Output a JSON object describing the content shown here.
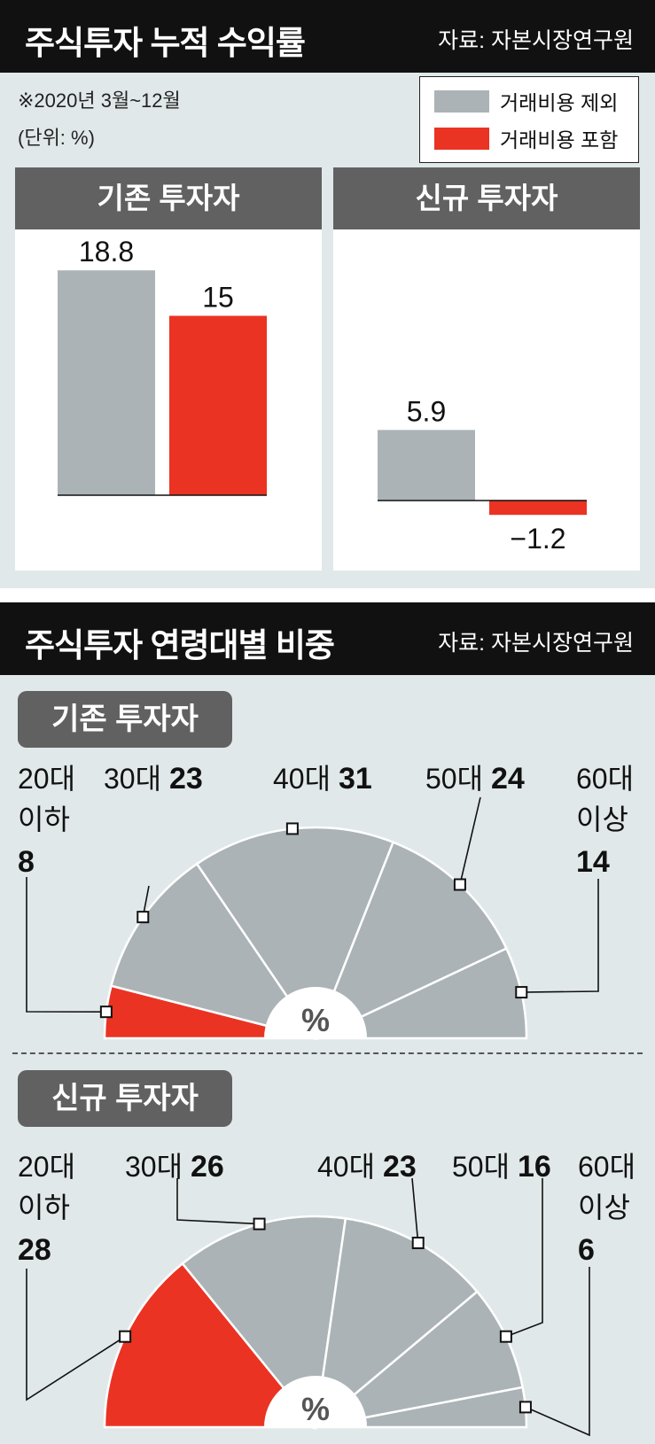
{
  "top": {
    "title": "주식투자 누적 수익률",
    "source": "자료: 자본시장연구원",
    "period": "※2020년 3월~12월",
    "unit": "(단위: %)",
    "legend": [
      {
        "label": "거래비용 제외",
        "color": "#abb3b6"
      },
      {
        "label": "거래비용 포함",
        "color": "#ea3323"
      }
    ]
  },
  "bottom": {
    "title": "주식투자 연령대별 비중",
    "source": "자료: 자본시장연구원",
    "center_label": "%"
  },
  "chart_data": [
    {
      "type": "bar",
      "title": "기존 투자자",
      "categories": [
        "거래비용 제외",
        "거래비용 포함"
      ],
      "values": [
        18.8,
        15
      ],
      "labels": [
        "18.8",
        "15"
      ],
      "colors": [
        "#abb3b6",
        "#ea3323"
      ]
    },
    {
      "type": "bar",
      "title": "신규 투자자",
      "categories": [
        "거래비용 제외",
        "거래비용 포함"
      ],
      "values": [
        5.9,
        -1.2
      ],
      "labels": [
        "5.9",
        "−1.2"
      ],
      "colors": [
        "#abb3b6",
        "#ea3323"
      ]
    },
    {
      "type": "pie",
      "title": "기존 투자자",
      "categories": [
        "20대 이하",
        "30대",
        "40대",
        "50대",
        "60대 이상"
      ],
      "values": [
        8,
        23,
        31,
        24,
        14
      ],
      "highlight_color": "#ea3323",
      "base_color": "#abb3b6"
    },
    {
      "type": "pie",
      "title": "신규 투자자",
      "categories": [
        "20대 이하",
        "30대",
        "40대",
        "50대",
        "60대 이상"
      ],
      "values": [
        28,
        26,
        23,
        16,
        6
      ],
      "highlight_color": "#ea3323",
      "base_color": "#abb3b6"
    }
  ]
}
